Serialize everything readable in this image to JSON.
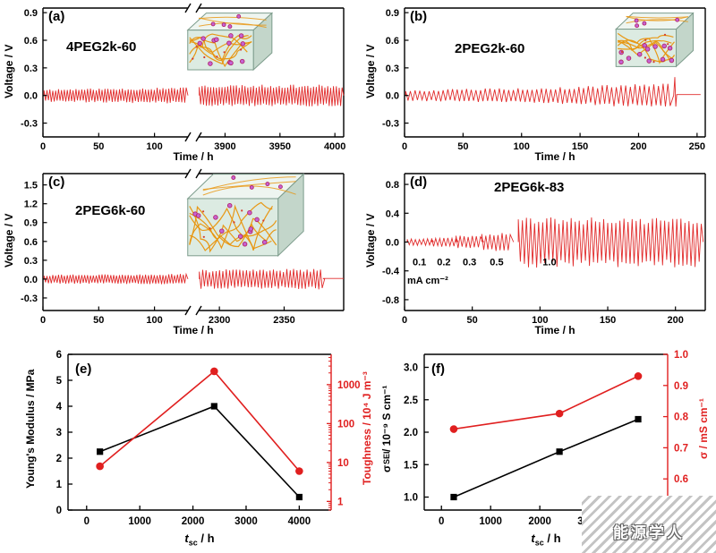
{
  "watermark": "能源学人",
  "colors": {
    "trace": "#e12c2c",
    "axis": "#000000",
    "accent_red": "#e01f1f",
    "cube_face": "#dcebe2",
    "cube_top": "#eef5f0",
    "cube_side": "#c3d6ca",
    "cube_edge": "#7d9c8c",
    "network": "#e8930b",
    "ion_fill": "#c563d4",
    "ion_edge": "#b3266b"
  },
  "chart_data": [
    {
      "id": "a",
      "letter": "(a)",
      "title": "4PEG2k-60",
      "type": "voltage",
      "ylabel": "Voltage / V",
      "xlabel": "Time / h",
      "ylim": [
        -0.45,
        0.95
      ],
      "yticks": [
        -0.3,
        0,
        0.3,
        0.6,
        0.9
      ],
      "ydec": 1,
      "segments": [
        {
          "xlim": [
            0,
            130
          ],
          "xticks": [
            0,
            50,
            100
          ],
          "env": [
            [
              0,
              0.06
            ],
            [
              130,
              0.075
            ]
          ],
          "period": 2.6,
          "seed": 11
        },
        {
          "xlim": [
            3876,
            4008
          ],
          "xticks": [
            3900,
            3950,
            4000
          ],
          "env": [
            [
              3876,
              0.1
            ],
            [
              4008,
              0.1
            ]
          ],
          "period": 2.6,
          "seed": 23
        }
      ],
      "inset": {
        "fx": 0.53,
        "fy": 0.07,
        "fw": 0.24,
        "fh": 0.35
      }
    },
    {
      "id": "b",
      "letter": "(b)",
      "title": "2PEG2k-60",
      "type": "voltage",
      "ylabel": "Voltage / V",
      "xlabel": "Time / h",
      "ylim": [
        -0.45,
        0.95
      ],
      "yticks": [
        -0.3,
        0,
        0.3,
        0.6,
        0.9
      ],
      "ydec": 1,
      "segments": [
        {
          "xlim": [
            0,
            257
          ],
          "xticks": [
            0,
            50,
            100,
            150,
            200,
            250
          ],
          "env": [
            [
              0,
              0.05
            ],
            [
              140,
              0.08
            ],
            [
              228,
              0.125
            ]
          ],
          "period": 4,
          "end_osc": 228,
          "spike": {
            "x": 231,
            "up": 0.2,
            "down": -0.12
          },
          "flat_to": 253,
          "seed": 5
        }
      ],
      "inset": {
        "fx": 0.72,
        "fy": 0.07,
        "fw": 0.22,
        "fh": 0.33
      }
    },
    {
      "id": "c",
      "letter": "(c)",
      "title": "2PEG6k-60",
      "type": "voltage",
      "ylabel": "Voltage / V",
      "xlabel": "Time / h",
      "ylim": [
        -0.5,
        1.68
      ],
      "yticks": [
        -0.3,
        0,
        0.3,
        0.6,
        0.9,
        1.2,
        1.5
      ],
      "ydec": 1,
      "segments": [
        {
          "xlim": [
            0,
            130
          ],
          "xticks": [
            0,
            50,
            100
          ],
          "env": [
            [
              0,
              0.06
            ],
            [
              130,
              0.07
            ]
          ],
          "period": 2.6,
          "seed": 31
        },
        {
          "xlim": [
            2284,
            2396
          ],
          "xticks": [
            2300,
            2350
          ],
          "env": [
            [
              2284,
              0.13
            ],
            [
              2396,
              0.14
            ]
          ],
          "period": 2.6,
          "end_osc": 2380,
          "flat_to": 2396,
          "seed": 41
        }
      ],
      "inset": {
        "fx": 0.53,
        "fy": 0.04,
        "fw": 0.33,
        "fh": 0.48
      }
    },
    {
      "id": "d",
      "letter": "(d)",
      "title": "2PEG6k-83",
      "type": "voltage",
      "ylabel": "Voltage / V",
      "xlabel": "Time / h",
      "ylim": [
        -0.95,
        0.95
      ],
      "yticks": [
        -0.8,
        -0.4,
        0,
        0.4,
        0.8
      ],
      "ydec": 1,
      "segments": [
        {
          "xlim": [
            0,
            222
          ],
          "xticks": [
            0,
            50,
            100,
            150,
            200
          ],
          "steps": [
            [
              2,
              20,
              0.042
            ],
            [
              20,
              38,
              0.058
            ],
            [
              38,
              57,
              0.075
            ],
            [
              57,
              79,
              0.107
            ],
            [
              84,
              219,
              0.3
            ]
          ],
          "period": 3,
          "seed": 55
        }
      ],
      "annotations": {
        "rates": [
          {
            "label": "0.1",
            "x": 11
          },
          {
            "label": "0.2",
            "x": 29
          },
          {
            "label": "0.3",
            "x": 48
          },
          {
            "label": "0.5",
            "x": 68
          },
          {
            "label": "1.0",
            "x": 107
          }
        ],
        "rates_y": -0.32,
        "unit": "mA cm⁻²",
        "unit_x": 2,
        "unit_y": -0.58
      }
    },
    {
      "id": "e",
      "letter": "(e)",
      "type": "dual",
      "xlabel_parts": {
        "pre": "t",
        "sub": "sc",
        "post": " / h"
      },
      "xlim": [
        -350,
        4600
      ],
      "xticks": [
        0,
        1000,
        2000,
        3000,
        4000
      ],
      "xdec": 0,
      "left": {
        "label": "Young's Modulus / MPa",
        "lim": [
          0,
          6
        ],
        "ticks": [
          0,
          1,
          2,
          3,
          4,
          5,
          6
        ],
        "dec": 0,
        "marker": "square",
        "x": [
          250,
          2400,
          4000
        ],
        "y": [
          2.25,
          4.0,
          0.5
        ]
      },
      "right": {
        "label": "Toughness / 10⁴ J m⁻³",
        "log": true,
        "lim": [
          0.6,
          6000
        ],
        "ticks": [
          1,
          10,
          100,
          1000
        ],
        "dec": 0,
        "marker": "circle",
        "x": [
          250,
          2400,
          4000
        ],
        "y": [
          8,
          2200,
          6
        ]
      }
    },
    {
      "id": "f",
      "letter": "(f)",
      "type": "dual",
      "xlabel_parts": {
        "pre": "t",
        "sub": "sc",
        "post": " / h"
      },
      "xlim": [
        -350,
        4600
      ],
      "xticks": [
        0,
        1000,
        2000,
        3000,
        4000
      ],
      "xdec": 0,
      "left": {
        "label_parts": {
          "pre": "σ",
          "sub": "SEI",
          "post": " / 10⁻⁹ S cm⁻¹"
        },
        "lim": [
          0.8,
          3.2
        ],
        "ticks": [
          1,
          1.5,
          2,
          2.5,
          3
        ],
        "dec": 1,
        "marker": "square",
        "x": [
          250,
          2400,
          4000
        ],
        "y": [
          1.0,
          1.7,
          2.2
        ]
      },
      "right": {
        "label": "σ / mS cm⁻¹",
        "lim": [
          0.5,
          1.0
        ],
        "ticks": [
          0.6,
          0.7,
          0.8,
          0.9,
          1.0
        ],
        "dec": 1,
        "marker": "circle",
        "x": [
          250,
          2400,
          4000
        ],
        "y": [
          0.76,
          0.81,
          0.93
        ]
      }
    }
  ]
}
